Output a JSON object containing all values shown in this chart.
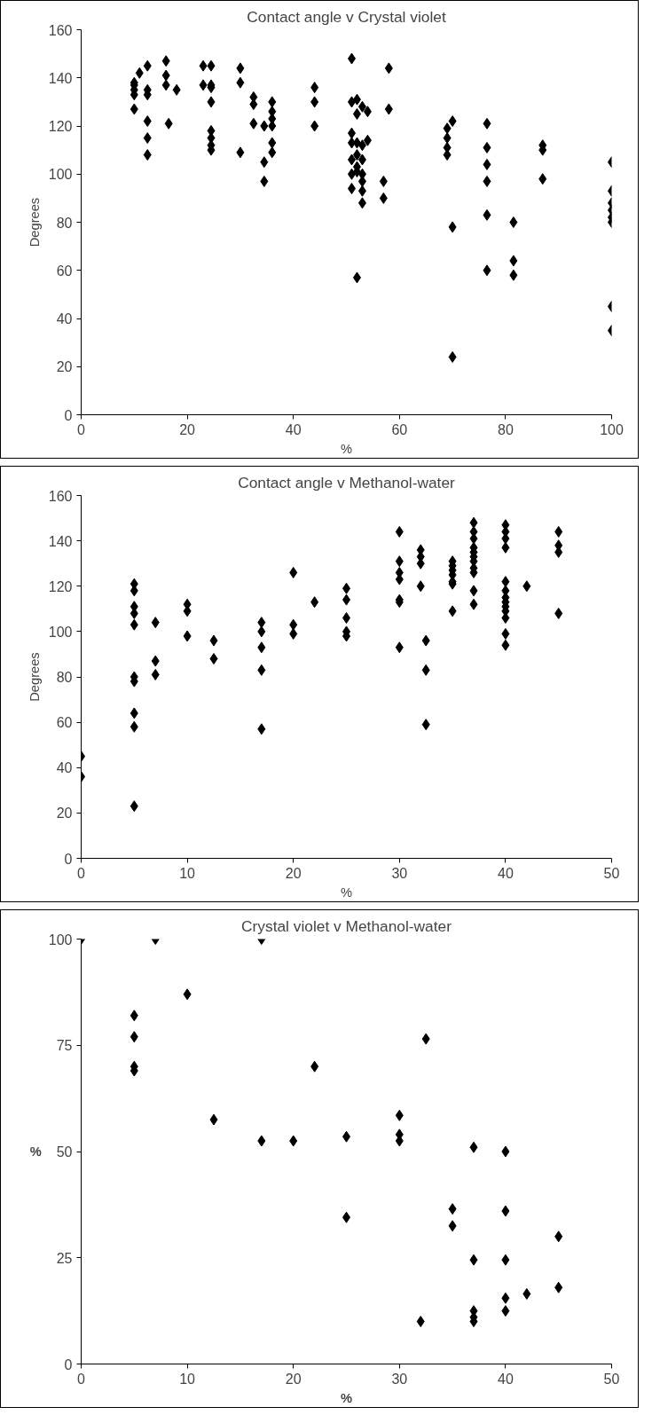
{
  "chart_data": [
    {
      "type": "scatter",
      "title": "Contact angle v Crystal violet",
      "xlabel": "%",
      "ylabel": "Degrees",
      "xlim": [
        0,
        100
      ],
      "xticks": [
        0,
        20,
        40,
        60,
        80,
        100
      ],
      "ylim": [
        0,
        160
      ],
      "yticks": [
        0,
        20,
        40,
        60,
        80,
        100,
        120,
        140,
        160
      ],
      "grid": false,
      "marker": "diamond",
      "series": [
        {
          "color": "#000000",
          "x": [
            10,
            10,
            10,
            10,
            10,
            11,
            12.5,
            12.5,
            12.5,
            12.5,
            12.5,
            12.5,
            16,
            16,
            16,
            16.5,
            18,
            23,
            23,
            24.5,
            24.5,
            24.5,
            24.5,
            24.5,
            24.5,
            24.5,
            24.5,
            30,
            30,
            30,
            32.5,
            32.5,
            32.5,
            34.5,
            34.5,
            34.5,
            36,
            36,
            36,
            36,
            36,
            36,
            44,
            44,
            44,
            51,
            51,
            51,
            51,
            51,
            51,
            51,
            52,
            52,
            52,
            52,
            52,
            52,
            52,
            53,
            53,
            53,
            53,
            53,
            53,
            53,
            54,
            54,
            57,
            57,
            58,
            58,
            69,
            69,
            69,
            69,
            70,
            70,
            70,
            76.5,
            76.5,
            76.5,
            76.5,
            76.5,
            76.5,
            81.5,
            81.5,
            81.5,
            87,
            87,
            87,
            100,
            100,
            100,
            100,
            100,
            100,
            100,
            100
          ],
          "values": [
            127,
            133,
            135,
            137,
            138,
            142,
            145,
            135,
            133,
            122,
            115,
            108,
            147,
            141,
            137,
            121,
            135,
            145,
            137,
            145,
            137,
            136,
            130,
            118,
            115,
            112,
            110,
            144,
            138,
            109,
            132,
            129,
            121,
            120,
            105,
            97,
            130,
            126,
            123,
            120,
            113,
            109,
            136,
            130,
            120,
            148,
            130,
            117,
            113,
            106,
            100,
            94,
            131,
            125,
            113,
            108,
            103,
            101,
            57,
            128,
            112,
            106,
            100,
            97,
            93,
            88,
            126,
            114,
            97,
            90,
            144,
            127,
            119,
            115,
            111,
            108,
            122,
            78,
            24,
            121,
            111,
            104,
            97,
            83,
            60,
            80,
            64,
            58,
            112,
            110,
            98,
            105,
            93,
            88,
            85,
            82,
            80,
            45,
            35
          ]
        }
      ]
    },
    {
      "type": "scatter",
      "title": "Contact angle v Methanol-water",
      "xlabel": "%",
      "ylabel": "Degrees",
      "xlim": [
        0,
        50
      ],
      "xticks": [
        0,
        10,
        20,
        30,
        40,
        50
      ],
      "ylim": [
        0,
        160
      ],
      "yticks": [
        0,
        20,
        40,
        60,
        80,
        100,
        120,
        140,
        160
      ],
      "grid": false,
      "marker": "diamond",
      "series": [
        {
          "color": "#000000",
          "x": [
            0,
            0,
            5,
            5,
            5,
            5,
            5,
            5,
            5,
            5,
            5,
            5,
            7,
            7,
            7,
            10,
            10,
            10,
            12.5,
            12.5,
            17,
            17,
            17,
            17,
            17,
            20,
            20,
            20,
            22,
            25,
            25,
            25,
            25,
            25,
            30,
            30,
            30,
            30,
            30,
            30,
            30,
            32,
            32,
            32,
            32,
            32.5,
            32.5,
            32.5,
            35,
            35,
            35,
            35,
            35,
            35,
            35,
            37,
            37,
            37,
            37,
            37,
            37,
            37,
            37,
            37,
            37,
            37,
            40,
            40,
            40,
            40,
            40,
            40,
            40,
            40,
            40,
            40,
            40,
            40,
            40,
            42,
            45,
            45,
            45,
            45
          ],
          "values": [
            45,
            36,
            121,
            118,
            111,
            108,
            103,
            80,
            78,
            64,
            58,
            23,
            104,
            87,
            81,
            112,
            109,
            98,
            96,
            88,
            104,
            100,
            93,
            83,
            57,
            126,
            103,
            99,
            113,
            119,
            114,
            106,
            100,
            98,
            144,
            131,
            126,
            123,
            114,
            113,
            93,
            136,
            133,
            130,
            120,
            96,
            83,
            59,
            131,
            129,
            127,
            125,
            122,
            121,
            109,
            148,
            144,
            141,
            137,
            135,
            133,
            131,
            128,
            126,
            118,
            112,
            147,
            144,
            141,
            137,
            122,
            118,
            115,
            113,
            111,
            109,
            106,
            99,
            94,
            120,
            144,
            138,
            135,
            108
          ]
        }
      ]
    },
    {
      "type": "scatter",
      "title": "Crystal violet v Methanol-water",
      "xlabel": "%",
      "ylabel": "%",
      "xlim": [
        0,
        50
      ],
      "xticks": [
        0,
        10,
        20,
        30,
        40,
        50
      ],
      "ylim": [
        0,
        100
      ],
      "yticks": [
        0,
        25,
        50,
        75,
        100
      ],
      "grid": false,
      "marker": "diamond",
      "series": [
        {
          "color": "#000000",
          "x": [
            0,
            5,
            5,
            5,
            5,
            7,
            10,
            12.5,
            17,
            17,
            20,
            22,
            25,
            25,
            30,
            30,
            30,
            32,
            32.5,
            35,
            35,
            37,
            37,
            37,
            37,
            37,
            40,
            40,
            40,
            40,
            40,
            42,
            45,
            45
          ],
          "values": [
            100,
            82,
            77,
            70,
            69,
            100,
            87,
            57.5,
            100,
            52.5,
            52.5,
            70,
            53.5,
            34.5,
            58.5,
            54,
            52.5,
            10,
            76.5,
            36.5,
            32.5,
            51,
            24.5,
            12.5,
            11,
            10,
            50,
            36,
            24.5,
            15.5,
            12.5,
            16.5,
            30,
            18
          ]
        }
      ]
    }
  ]
}
